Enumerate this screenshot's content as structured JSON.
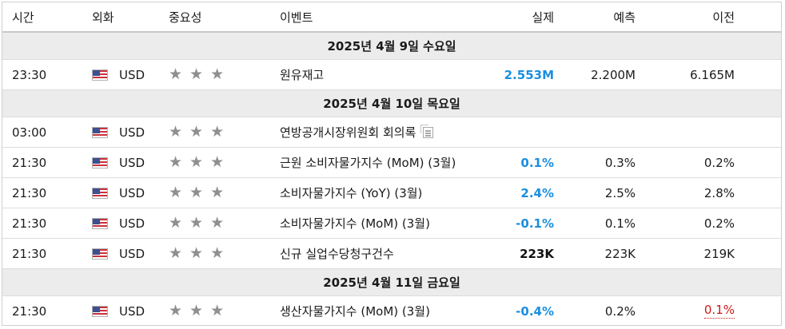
{
  "header": {
    "time": "시간",
    "currency": "외화",
    "importance": "중요성",
    "event": "이벤트",
    "actual": "실제",
    "forecast": "예측",
    "previous": "이전"
  },
  "importance_icon": "star-icon",
  "flag_icon": "us-flag-icon",
  "colors": {
    "actual_blue": "#1a8fe0",
    "previous_red": "#d01818",
    "day_band": "#ececec"
  },
  "days": [
    {
      "label": "2025년 4월 9일 수요일",
      "events": [
        {
          "time": "23:30",
          "currency": "USD",
          "importance": 3,
          "event": "원유재고",
          "actual": "2.553M",
          "actual_style": "blue",
          "forecast": "2.200M",
          "previous": "6.165M",
          "previous_style": "normal",
          "has_doc_icon": false
        }
      ]
    },
    {
      "label": "2025년 4월 10일 목요일",
      "events": [
        {
          "time": "03:00",
          "currency": "USD",
          "importance": 3,
          "event": "연방공개시장위원회 회의록",
          "actual": "",
          "actual_style": "blue",
          "forecast": "",
          "previous": "",
          "previous_style": "normal",
          "has_doc_icon": true
        },
        {
          "time": "21:30",
          "currency": "USD",
          "importance": 3,
          "event": "근원 소비자물가지수 (MoM) (3월)",
          "actual": "0.1%",
          "actual_style": "blue",
          "forecast": "0.3%",
          "previous": "0.2%",
          "previous_style": "normal",
          "has_doc_icon": false
        },
        {
          "time": "21:30",
          "currency": "USD",
          "importance": 3,
          "event": "소비자물가지수 (YoY) (3월)",
          "actual": "2.4%",
          "actual_style": "blue",
          "forecast": "2.5%",
          "previous": "2.8%",
          "previous_style": "normal",
          "has_doc_icon": false
        },
        {
          "time": "21:30",
          "currency": "USD",
          "importance": 3,
          "event": "소비자물가지수 (MoM) (3월)",
          "actual": "-0.1%",
          "actual_style": "blue",
          "forecast": "0.1%",
          "previous": "0.2%",
          "previous_style": "normal",
          "has_doc_icon": false
        },
        {
          "time": "21:30",
          "currency": "USD",
          "importance": 3,
          "event": "신규 실업수당청구건수",
          "actual": "223K",
          "actual_style": "black",
          "forecast": "223K",
          "previous": "219K",
          "previous_style": "normal",
          "has_doc_icon": false
        }
      ]
    },
    {
      "label": "2025년 4월 11일 금요일",
      "events": [
        {
          "time": "21:30",
          "currency": "USD",
          "importance": 3,
          "event": "생산자물가지수 (MoM) (3월)",
          "actual": "-0.4%",
          "actual_style": "blue",
          "forecast": "0.2%",
          "previous": "0.1%",
          "previous_style": "red",
          "has_doc_icon": false
        }
      ]
    }
  ]
}
